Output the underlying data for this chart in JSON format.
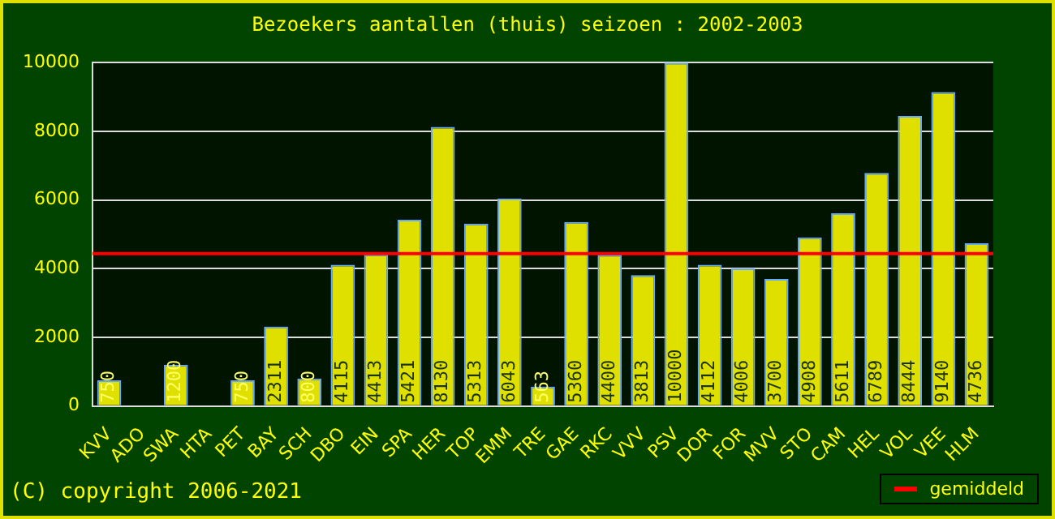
{
  "chart_data": {
    "type": "bar",
    "title": "Bezoekers aantallen (thuis) seizoen : 2002-2003",
    "categories": [
      "KVV",
      "ADO",
      "SWA",
      "HTA",
      "PET",
      "BAY",
      "SCH",
      "DBO",
      "EIN",
      "SPA",
      "HER",
      "TOP",
      "EMM",
      "TRE",
      "GAE",
      "RKC",
      "VVV",
      "PSV",
      "DOR",
      "FOR",
      "MVV",
      "STO",
      "CAM",
      "HEL",
      "VOL",
      "VEE",
      "HLM"
    ],
    "values": [
      750,
      0,
      1200,
      0,
      750,
      2311,
      800,
      4115,
      4413,
      5421,
      8130,
      5313,
      6043,
      563,
      5360,
      4400,
      3813,
      10000,
      4112,
      4006,
      3700,
      4908,
      5611,
      6789,
      8444,
      9140,
      4736
    ],
    "value_labels": [
      "750",
      null,
      "1200",
      null,
      "750",
      "2311",
      "800",
      "4115",
      "4413",
      "5421",
      "8130",
      "5313",
      "6043",
      "563",
      "5360",
      "4400",
      "3813",
      "10000",
      "4112",
      "4006",
      "3700",
      "4908",
      "5611",
      "6789",
      "8444",
      "9140",
      "4736"
    ],
    "color": "#e0e000",
    "ylim": [
      0,
      10000
    ],
    "yticks": [
      0,
      2000,
      4000,
      6000,
      8000,
      10000
    ],
    "grid": "y",
    "ref_lines": [
      {
        "axis": "y",
        "value": 4440,
        "label": "gemiddeld",
        "color": "#ff0000"
      }
    ],
    "legend": "bottom right",
    "annotations": [
      "(C) copyright 2006-2021"
    ]
  }
}
